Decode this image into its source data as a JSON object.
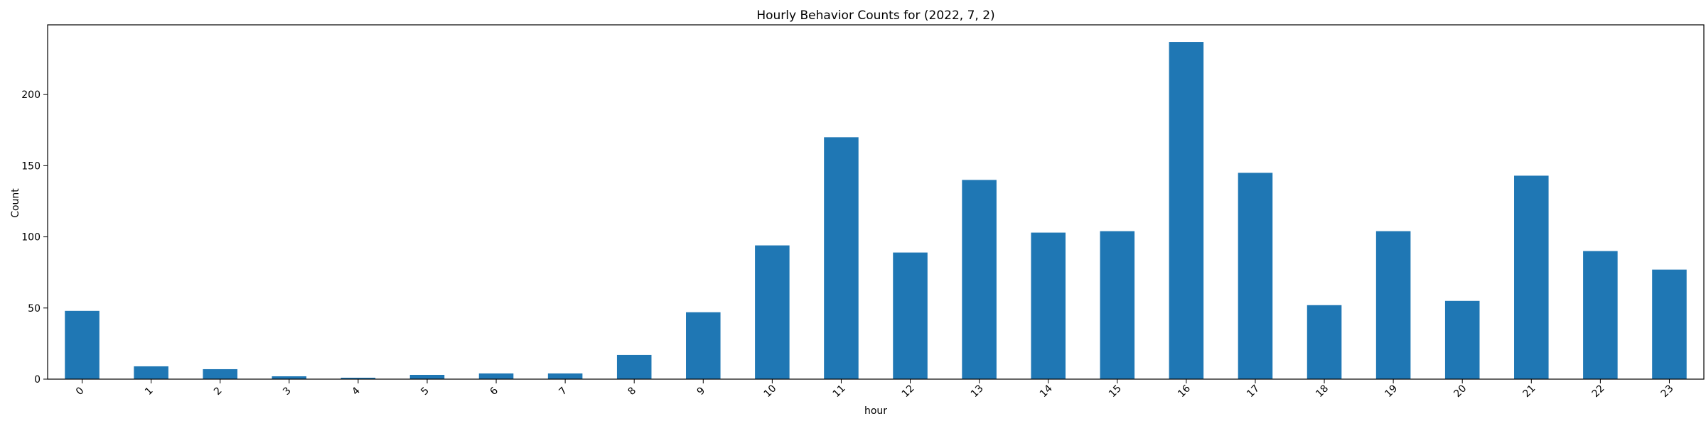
{
  "chart_data": {
    "type": "bar",
    "title": "Hourly Behavior Counts for (2022, 7, 2)",
    "xlabel": "hour",
    "ylabel": "Count",
    "categories": [
      "0",
      "1",
      "2",
      "3",
      "4",
      "5",
      "6",
      "7",
      "8",
      "9",
      "10",
      "11",
      "12",
      "13",
      "14",
      "15",
      "16",
      "17",
      "18",
      "19",
      "20",
      "21",
      "22",
      "23"
    ],
    "values": [
      48,
      9,
      7,
      2,
      1,
      3,
      4,
      4,
      17,
      47,
      94,
      170,
      89,
      140,
      103,
      104,
      237,
      145,
      52,
      104,
      55,
      143,
      90,
      77
    ],
    "ylim": [
      0,
      249
    ],
    "yticks": [
      0,
      50,
      100,
      150,
      200
    ],
    "bar_color": "#1f77b4",
    "grid": false,
    "legend": "none"
  }
}
